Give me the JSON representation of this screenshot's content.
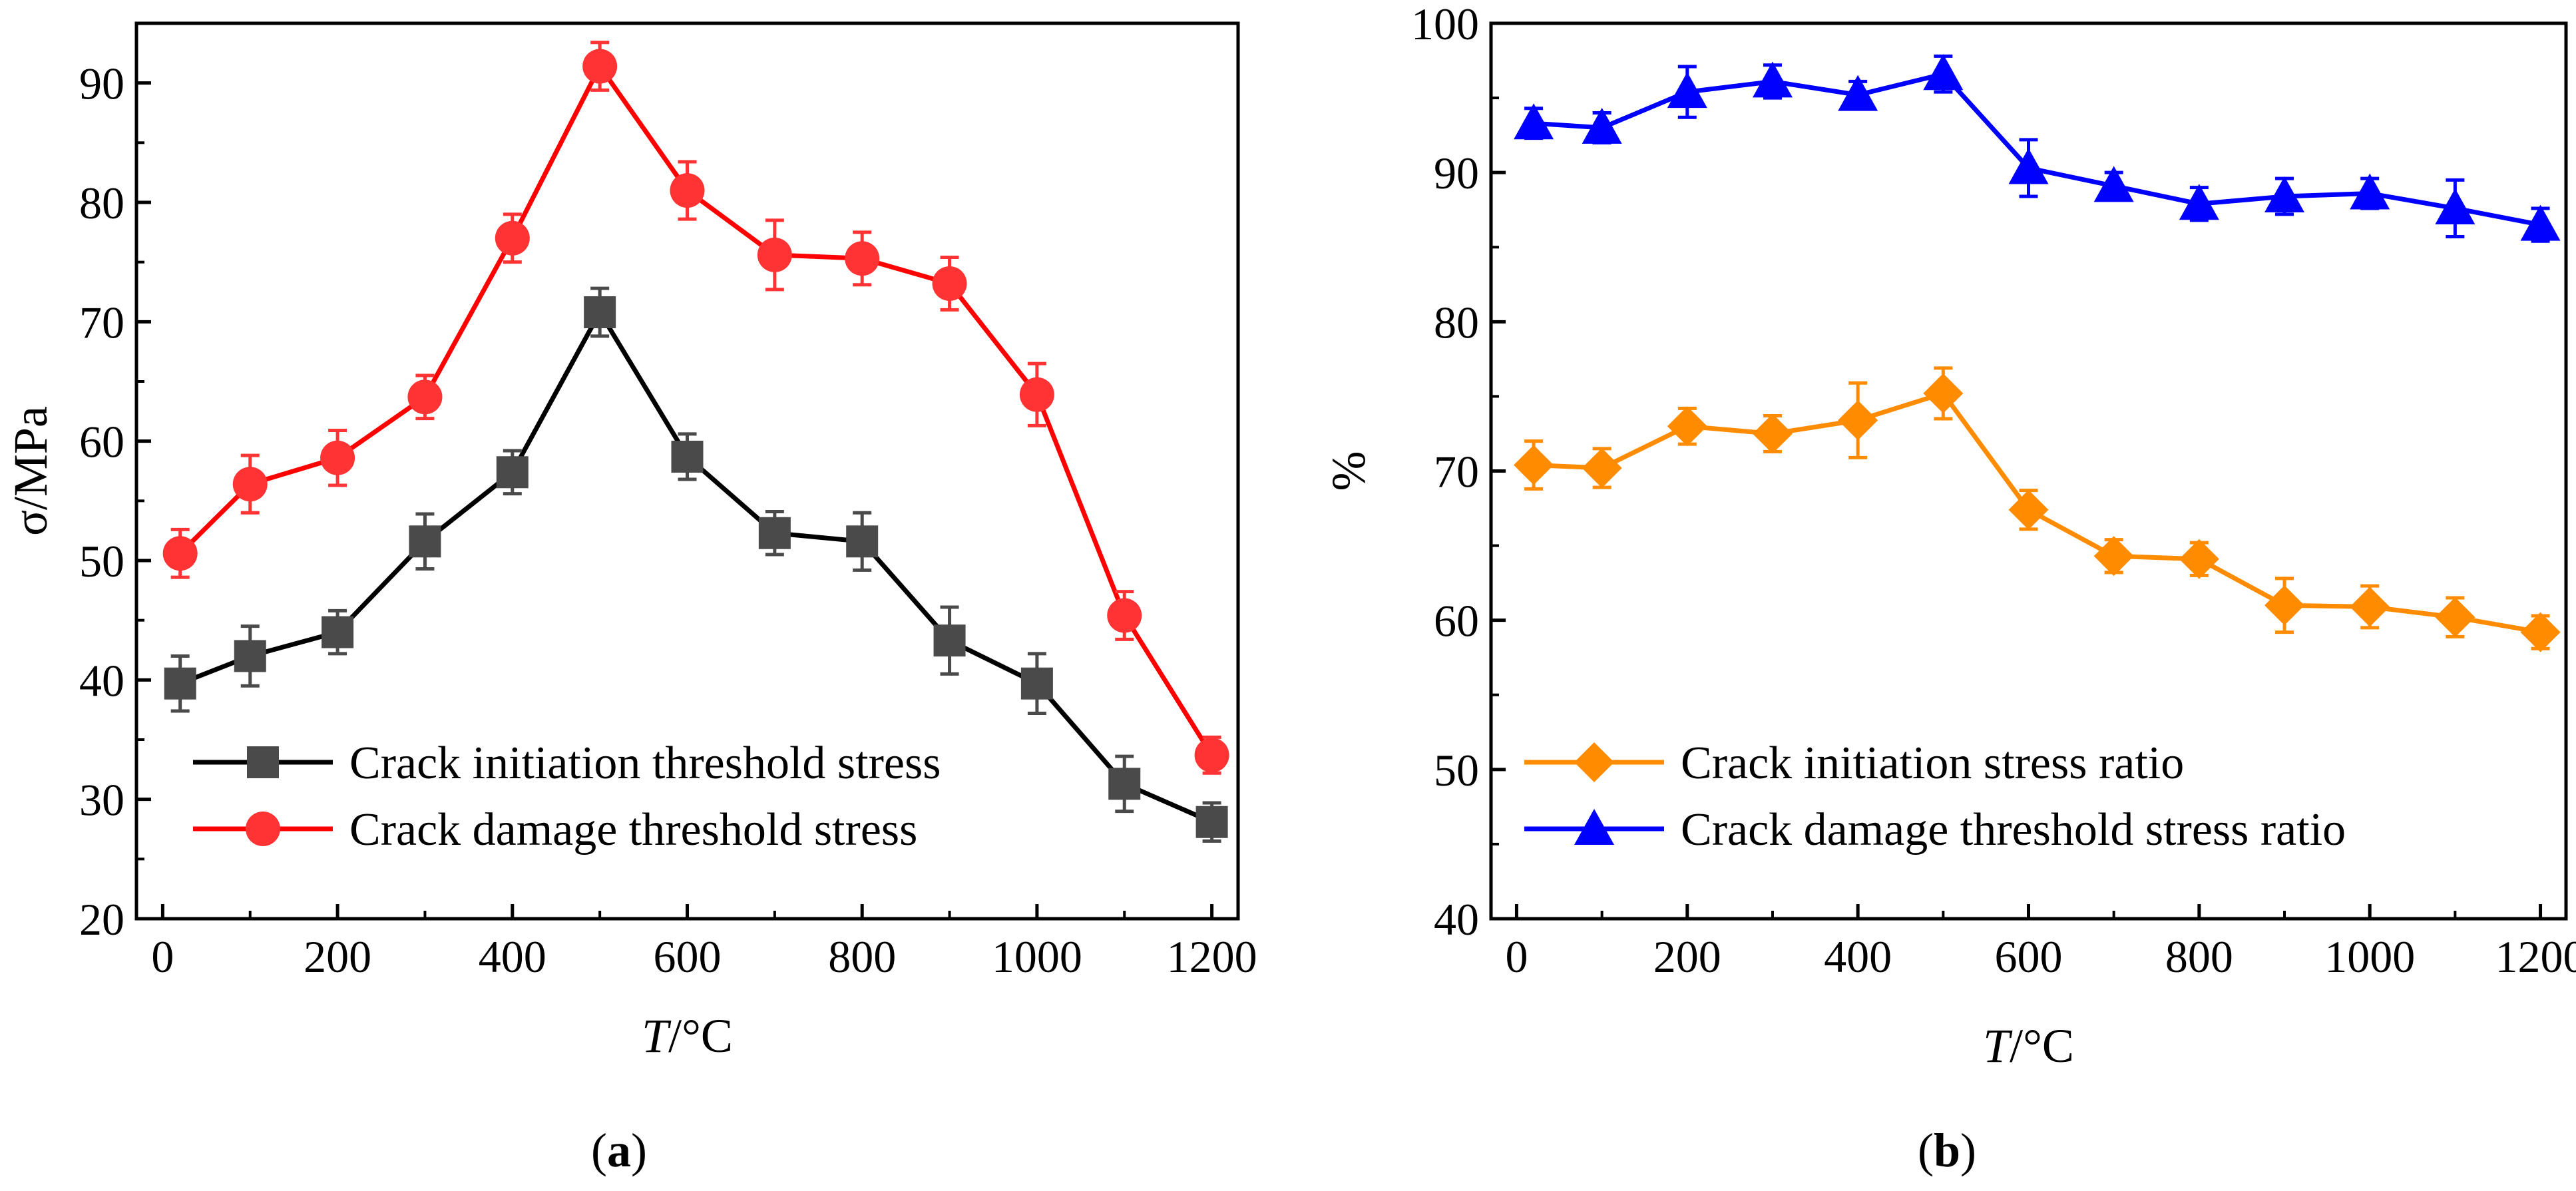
{
  "figure": {
    "panels": [
      "a",
      "b"
    ]
  },
  "chart_data": [
    {
      "id": "a",
      "type": "line",
      "panel_label": "a",
      "xlabel": {
        "italic": "T",
        "rest": "/°C"
      },
      "ylabel": "σ/MPa",
      "xlim": [
        -30,
        1230
      ],
      "ylim": [
        20,
        95
      ],
      "xticks": [
        0,
        200,
        400,
        600,
        800,
        1000,
        1200
      ],
      "yticks": [
        20,
        30,
        40,
        50,
        60,
        70,
        80,
        90
      ],
      "legend_position": "bottom-left",
      "x": [
        20,
        100,
        200,
        300,
        400,
        500,
        600,
        700,
        800,
        900,
        1000,
        1100,
        1200
      ],
      "series": [
        {
          "name": "Crack initiation threshold stress",
          "color": "#000000",
          "marker_color": "#4a4a4a",
          "marker": "square",
          "values": [
            39.7,
            42.0,
            44.0,
            51.6,
            57.4,
            70.8,
            58.7,
            52.3,
            51.6,
            43.3,
            39.7,
            31.3,
            28.1
          ],
          "errors": [
            2.3,
            2.5,
            1.8,
            2.3,
            1.8,
            2.0,
            1.9,
            1.8,
            2.4,
            2.8,
            2.5,
            2.3,
            1.6
          ]
        },
        {
          "name": "Crack damage threshold stress",
          "color": "#ff0000",
          "marker_color": "#ff3333",
          "marker": "circle",
          "values": [
            50.6,
            56.4,
            58.6,
            63.7,
            77.0,
            91.4,
            81.0,
            75.6,
            75.3,
            73.2,
            63.9,
            45.4,
            33.7
          ],
          "errors": [
            2.0,
            2.4,
            2.3,
            1.8,
            2.0,
            2.0,
            2.4,
            2.9,
            2.2,
            2.2,
            2.6,
            2.0,
            1.5
          ]
        }
      ]
    },
    {
      "id": "b",
      "type": "line",
      "panel_label": "b",
      "xlabel": {
        "italic": "T",
        "rest": "/°C"
      },
      "ylabel": "%",
      "xlim": [
        -30,
        1230
      ],
      "ylim": [
        40,
        100
      ],
      "xticks": [
        0,
        200,
        400,
        600,
        800,
        1000,
        1200
      ],
      "yticks": [
        40,
        50,
        60,
        70,
        80,
        90,
        100
      ],
      "legend_position": "bottom-left",
      "x": [
        20,
        100,
        200,
        300,
        400,
        500,
        600,
        700,
        800,
        900,
        1000,
        1100,
        1200
      ],
      "series": [
        {
          "name": "Crack initiation stress ratio",
          "color": "#ff8c00",
          "marker_color": "#ff8c00",
          "marker": "diamond",
          "values": [
            70.4,
            70.2,
            73.0,
            72.5,
            73.4,
            75.2,
            67.4,
            64.3,
            64.1,
            61.0,
            60.9,
            60.2,
            59.2
          ],
          "errors": [
            1.6,
            1.3,
            1.2,
            1.2,
            2.5,
            1.7,
            1.3,
            1.1,
            1.1,
            1.8,
            1.4,
            1.3,
            1.1
          ]
        },
        {
          "name": "Crack damage threshold stress ratio",
          "color": "#0000ff",
          "marker_color": "#0000ff",
          "marker": "triangle",
          "values": [
            93.3,
            93.0,
            95.4,
            96.1,
            95.2,
            96.6,
            90.3,
            89.1,
            87.9,
            88.4,
            88.6,
            87.6,
            86.5
          ],
          "errors": [
            1.0,
            1.0,
            1.7,
            1.1,
            0.9,
            1.2,
            1.9,
            0.9,
            1.1,
            1.2,
            1.0,
            1.9,
            1.1
          ]
        }
      ]
    }
  ]
}
